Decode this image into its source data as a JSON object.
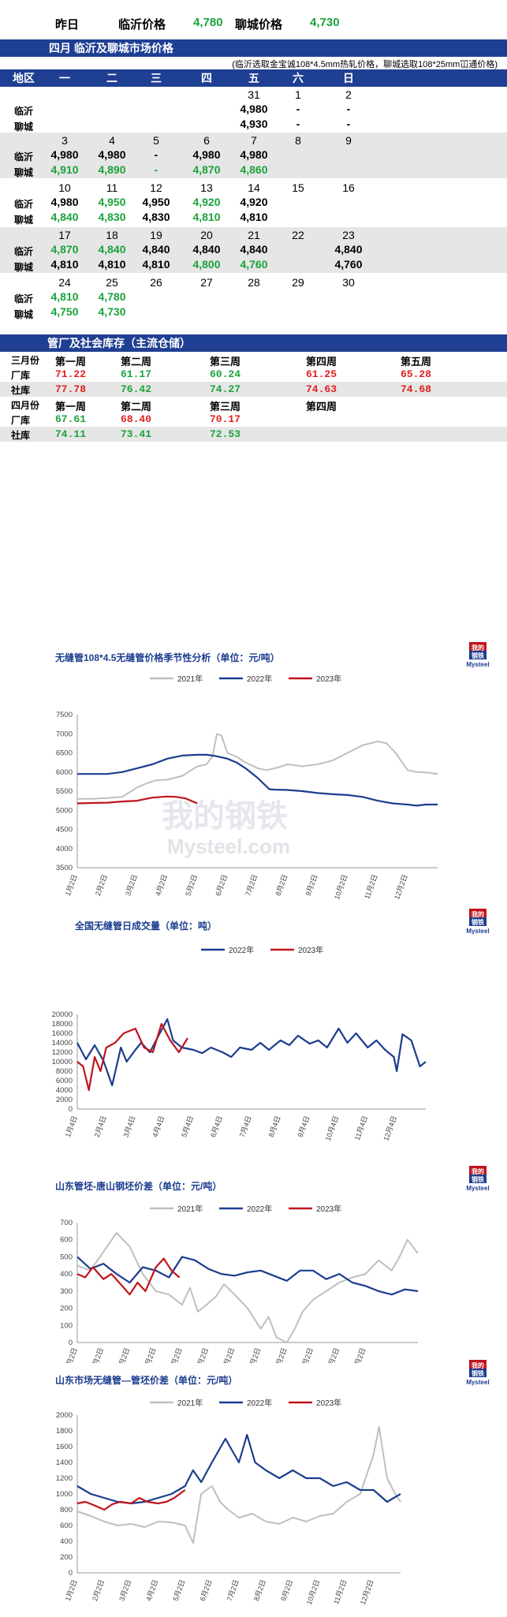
{
  "header": {
    "yesterday_label": "昨日",
    "linyi_label": "临沂价格",
    "linyi_value": "4,780",
    "liaocheng_label": "聊城价格",
    "liaocheng_value": "4,730"
  },
  "calendar": {
    "title": "四月  临沂及聊城市场价格",
    "note": "(临沂选取金宝诚108*4.5mm热轧价格，聊城选取108*25mm冚通价格)",
    "area_label": "地区",
    "weekdays": [
      "一",
      "二",
      "三",
      "四",
      "五",
      "六",
      "日"
    ],
    "row_label_linyi": "临沂",
    "row_label_liaocheng": "聊城",
    "weeks": [
      {
        "dates": [
          "",
          "",
          "",
          "",
          "31",
          "1",
          "2"
        ],
        "linyi": [
          "",
          "",
          "",
          "",
          "4,980",
          "-",
          "-"
        ],
        "liaocheng": [
          "",
          "",
          "",
          "",
          "4,930",
          "-",
          "-"
        ],
        "linyi_color": [
          "",
          "",
          "",
          "",
          "k",
          "k",
          "k"
        ],
        "liaocheng_color": [
          "",
          "",
          "",
          "",
          "k",
          "k",
          "k"
        ]
      },
      {
        "dates": [
          "3",
          "4",
          "5",
          "6",
          "7",
          "8",
          "9"
        ],
        "linyi": [
          "4,980",
          "4,980",
          "-",
          "4,980",
          "4,980",
          "",
          ""
        ],
        "liaocheng": [
          "4,910",
          "4,890",
          "-",
          "4,870",
          "4,860",
          "",
          ""
        ],
        "linyi_color": [
          "k",
          "k",
          "k",
          "k",
          "k",
          "",
          ""
        ],
        "liaocheng_color": [
          "g",
          "g",
          "g",
          "g",
          "g",
          "",
          ""
        ]
      },
      {
        "dates": [
          "10",
          "11",
          "12",
          "13",
          "14",
          "15",
          "16"
        ],
        "linyi": [
          "4,980",
          "4,950",
          "4,950",
          "4,920",
          "4,920",
          "",
          ""
        ],
        "liaocheng": [
          "4,840",
          "4,830",
          "4,830",
          "4,810",
          "4,810",
          "",
          ""
        ],
        "linyi_color": [
          "k",
          "g",
          "k",
          "g",
          "k",
          "",
          ""
        ],
        "liaocheng_color": [
          "g",
          "g",
          "k",
          "g",
          "k",
          "",
          ""
        ]
      },
      {
        "dates": [
          "17",
          "18",
          "19",
          "20",
          "21",
          "22",
          "23"
        ],
        "linyi": [
          "4,870",
          "4,840",
          "4,840",
          "4,840",
          "4,840",
          "",
          "4,840"
        ],
        "liaocheng": [
          "4,810",
          "4,810",
          "4,810",
          "4,800",
          "4,760",
          "",
          "4,760"
        ],
        "linyi_color": [
          "g",
          "g",
          "k",
          "k",
          "k",
          "",
          "k"
        ],
        "liaocheng_color": [
          "k",
          "k",
          "k",
          "g",
          "g",
          "",
          "k"
        ]
      },
      {
        "dates": [
          "24",
          "25",
          "26",
          "27",
          "28",
          "29",
          "30"
        ],
        "linyi": [
          "4,810",
          "4,780",
          "",
          "",
          "",
          "",
          ""
        ],
        "liaocheng": [
          "4,750",
          "4,730",
          "",
          "",
          "",
          "",
          ""
        ],
        "linyi_color": [
          "g",
          "g",
          "",
          "",
          "",
          "",
          ""
        ],
        "liaocheng_color": [
          "g",
          "g",
          "",
          "",
          "",
          "",
          ""
        ]
      }
    ]
  },
  "inventory": {
    "title": "管厂及社会库存（主流仓储）",
    "march_label": "三月份",
    "april_label": "四月份",
    "factory_label": "厂库",
    "social_label": "社库",
    "weeks": [
      "第一周",
      "第二周",
      "第三周",
      "第四周",
      "第五周"
    ],
    "april_weeks": [
      "第一周",
      "第二周",
      "第三周",
      "第四周"
    ],
    "march_factory": [
      "71.22",
      "61.17",
      "60.24",
      "61.25",
      "65.28"
    ],
    "march_factory_color": [
      "r",
      "g",
      "g",
      "r",
      "r"
    ],
    "march_social": [
      "77.78",
      "76.42",
      "74.27",
      "74.63",
      "74.68"
    ],
    "march_social_color": [
      "r",
      "g",
      "g",
      "r",
      "r"
    ],
    "april_factory": [
      "67.61",
      "68.40",
      "70.17"
    ],
    "april_factory_color": [
      "g",
      "r",
      "r"
    ],
    "april_social": [
      "74.11",
      "73.41",
      "72.53"
    ],
    "april_social_color": [
      "g",
      "g",
      "g"
    ]
  },
  "logo": {
    "line1": "我的",
    "line2": "钢铁",
    "brand": "Mysteel"
  },
  "watermark": {
    "cn": "我的钢铁",
    "en": "Mysteel.com"
  },
  "colors": {
    "navy": "#1f3f93",
    "green": "#1aa33a",
    "red": "#e0201f",
    "s2021": "#bfbfbf",
    "s2022": "#1c3d8f",
    "s2023": "#c0141c"
  },
  "chart_data": [
    {
      "type": "line",
      "title": "无缝管108*4.5无缝管价格季节性分析（单位：元/吨）",
      "ylim": [
        3500,
        7500
      ],
      "yticks": [
        3500,
        4000,
        4500,
        5000,
        5500,
        6000,
        6500,
        7000,
        7500
      ],
      "xticks": [
        "1月2日",
        "2月2日",
        "3月2日",
        "4月2日",
        "5月2日",
        "6月2日",
        "7月2日",
        "8月2日",
        "9月2日",
        "10月2日",
        "11月2日",
        "12月2日"
      ],
      "legend": "top",
      "grid": false,
      "series": [
        {
          "name": "2021年",
          "color": "#bfbfbf",
          "x": [
            0,
            0.5,
            1,
            1.5,
            2,
            2.3,
            2.6,
            3,
            3.5,
            4,
            4.3,
            4.5,
            4.65,
            4.8,
            5,
            5.3,
            5.6,
            6,
            6.3,
            6.6,
            7,
            7.5,
            8,
            8.5,
            9,
            9.5,
            10,
            10.3,
            10.6,
            11,
            11.3,
            11.6,
            12
          ],
          "y": [
            5300,
            5300,
            5320,
            5350,
            5600,
            5700,
            5780,
            5800,
            5900,
            6150,
            6200,
            6400,
            7000,
            6950,
            6500,
            6400,
            6250,
            6100,
            6050,
            6100,
            6200,
            6150,
            6200,
            6300,
            6500,
            6700,
            6800,
            6750,
            6500,
            6050,
            6000,
            5990,
            5950
          ]
        },
        {
          "name": "2022年",
          "color": "#1c3d8f",
          "x": [
            0,
            0.5,
            1,
            1.5,
            2,
            2.5,
            3,
            3.5,
            4,
            4.3,
            4.6,
            5,
            5.3,
            5.6,
            6,
            6.2,
            6.4,
            6.6,
            7,
            7.5,
            8,
            8.5,
            9,
            9.5,
            10,
            10.5,
            11,
            11.3,
            11.6,
            12
          ],
          "y": [
            5950,
            5950,
            5950,
            6000,
            6100,
            6200,
            6350,
            6430,
            6450,
            6450,
            6420,
            6350,
            6250,
            6100,
            5850,
            5700,
            5550,
            5540,
            5530,
            5500,
            5450,
            5420,
            5400,
            5350,
            5250,
            5180,
            5150,
            5120,
            5150,
            5150
          ]
        },
        {
          "name": "2023年",
          "color": "#c0141c",
          "x": [
            0,
            0.5,
            1,
            1.5,
            2,
            2.5,
            3,
            3.3,
            3.6,
            4
          ],
          "y": [
            5180,
            5190,
            5200,
            5230,
            5250,
            5330,
            5360,
            5350,
            5310,
            5180
          ]
        }
      ]
    },
    {
      "type": "line",
      "title": "全国无缝管日成交量（单位：吨）",
      "ylim": [
        0,
        20000
      ],
      "yticks": [
        0,
        2000,
        4000,
        6000,
        8000,
        10000,
        12000,
        14000,
        16000,
        18000,
        20000
      ],
      "xticks": [
        "1月4日",
        "2月4日",
        "3月4日",
        "4月4日",
        "5月4日",
        "6月4日",
        "7月4日",
        "8月4日",
        "9月4日",
        "10月4日",
        "11月4日",
        "12月4日"
      ],
      "legend": "top",
      "grid": false,
      "series": [
        {
          "name": "2022年",
          "color": "#1c3d8f",
          "x": [
            0,
            0.3,
            0.6,
            0.9,
            1.2,
            1.5,
            1.7,
            2.0,
            2.2,
            2.5,
            2.8,
            3.1,
            3.3,
            3.6,
            4.0,
            4.3,
            4.6,
            5.0,
            5.3,
            5.6,
            6.0,
            6.3,
            6.6,
            7.0,
            7.3,
            7.6,
            8.0,
            8.3,
            8.6,
            9.0,
            9.3,
            9.6,
            10.0,
            10.3,
            10.6,
            10.9,
            11.0,
            11.2,
            11.5,
            11.8,
            12.0
          ],
          "y": [
            14000,
            10500,
            13500,
            10200,
            5000,
            13000,
            10000,
            12500,
            14000,
            12000,
            15500,
            19000,
            14500,
            13000,
            12500,
            11800,
            13000,
            12000,
            11000,
            13000,
            12500,
            14000,
            12500,
            14500,
            13500,
            15500,
            13800,
            14500,
            13000,
            17000,
            14000,
            16000,
            13000,
            14500,
            12500,
            11000,
            8000,
            15800,
            14500,
            9000,
            10000
          ]
        },
        {
          "name": "2023年",
          "color": "#c0141c",
          "x": [
            0,
            0.2,
            0.4,
            0.6,
            0.8,
            1.0,
            1.3,
            1.6,
            2.0,
            2.3,
            2.6,
            2.9,
            3.2,
            3.5,
            3.8
          ],
          "y": [
            10000,
            9000,
            4000,
            11000,
            8000,
            13000,
            14000,
            16000,
            17000,
            13000,
            12000,
            18000,
            14500,
            12000,
            15000
          ]
        }
      ]
    },
    {
      "type": "line",
      "title": "山东管坯-唐山钢坯价差（单位：元/吨）",
      "ylim": [
        0,
        700
      ],
      "yticks": [
        0,
        100,
        200,
        300,
        400,
        500,
        600,
        700
      ],
      "xticks": [
        "1月2日",
        "2月2日",
        "3月2日",
        "4月2日",
        "5月2日",
        "6月2日",
        "7月2日",
        "8月2日",
        "9月2日",
        "10月2日",
        "11月2日",
        "12月2日"
      ],
      "legend": "top",
      "grid": false,
      "series": [
        {
          "name": "2021年",
          "color": "#bfbfbf",
          "x": [
            0,
            0.5,
            1,
            1.5,
            2,
            2.5,
            3,
            3.5,
            4,
            4.3,
            4.6,
            5,
            5.3,
            5.6,
            6,
            6.5,
            7,
            7.3,
            7.6,
            8,
            8.3,
            8.6,
            9,
            9.5,
            10,
            10.5,
            11,
            11.5,
            12,
            12.3,
            12.6,
            13
          ],
          "y": [
            450,
            420,
            530,
            640,
            560,
            400,
            300,
            280,
            220,
            320,
            180,
            230,
            270,
            340,
            280,
            200,
            80,
            150,
            30,
            0,
            80,
            180,
            250,
            300,
            350,
            380,
            400,
            480,
            420,
            500,
            600,
            520
          ]
        },
        {
          "name": "2022年",
          "color": "#1c3d8f",
          "x": [
            0,
            0.5,
            1,
            1.5,
            2,
            2.5,
            3,
            3.5,
            4,
            4.5,
            5,
            5.5,
            6,
            6.5,
            7,
            7.5,
            8,
            8.5,
            9,
            9.5,
            10,
            10.5,
            11,
            11.5,
            12,
            12.5,
            13
          ],
          "y": [
            500,
            430,
            460,
            400,
            350,
            440,
            420,
            380,
            500,
            480,
            430,
            400,
            390,
            410,
            420,
            390,
            360,
            420,
            420,
            370,
            400,
            350,
            330,
            300,
            280,
            310,
            300
          ]
        },
        {
          "name": "2023年",
          "color": "#c0141c",
          "x": [
            0,
            0.3,
            0.6,
            1.0,
            1.3,
            1.6,
            2.0,
            2.3,
            2.6,
            3.0,
            3.3,
            3.6,
            3.9
          ],
          "y": [
            400,
            380,
            440,
            370,
            400,
            350,
            280,
            350,
            300,
            440,
            490,
            420,
            380
          ]
        }
      ]
    },
    {
      "type": "line",
      "title": "山东市场无缝管—管坯价差（单位：元/吨）",
      "ylim": [
        0,
        2000
      ],
      "yticks": [
        0,
        200,
        400,
        600,
        800,
        1000,
        1200,
        1400,
        1600,
        1800,
        2000
      ],
      "xticks": [
        "1月2日",
        "2月2日",
        "3月2日",
        "4月2日",
        "5月2日",
        "6月2日",
        "7月2日",
        "8月2日",
        "9月2日",
        "10月2日",
        "11月2日",
        "12月2日"
      ],
      "legend": "top",
      "grid": false,
      "series": [
        {
          "name": "2021年",
          "color": "#bfbfbf",
          "x": [
            0,
            0.5,
            1,
            1.5,
            2,
            2.5,
            3,
            3.5,
            4,
            4.3,
            4.6,
            5,
            5.3,
            5.6,
            6,
            6.5,
            7,
            7.5,
            8,
            8.5,
            9,
            9.5,
            10,
            10.5,
            11,
            11.2,
            11.5,
            11.8,
            12
          ],
          "y": [
            780,
            720,
            650,
            600,
            620,
            580,
            650,
            640,
            600,
            380,
            1000,
            1100,
            900,
            800,
            700,
            750,
            650,
            620,
            700,
            650,
            720,
            750,
            900,
            1000,
            1500,
            1850,
            1200,
            1000,
            900
          ]
        },
        {
          "name": "2022年",
          "color": "#1c3d8f",
          "x": [
            0,
            0.5,
            1,
            1.5,
            2,
            2.5,
            3,
            3.5,
            4,
            4.3,
            4.6,
            5,
            5.5,
            6,
            6.3,
            6.6,
            7,
            7.5,
            8,
            8.5,
            9,
            9.5,
            10,
            10.5,
            11,
            11.5,
            12
          ],
          "y": [
            1100,
            1000,
            950,
            900,
            880,
            900,
            950,
            1000,
            1100,
            1300,
            1150,
            1400,
            1700,
            1400,
            1750,
            1400,
            1300,
            1200,
            1300,
            1200,
            1200,
            1100,
            1150,
            1050,
            1050,
            900,
            1000
          ]
        },
        {
          "name": "2023年",
          "color": "#c0141c",
          "x": [
            0,
            0.3,
            0.6,
            1.0,
            1.3,
            1.6,
            2.0,
            2.3,
            2.6,
            3.0,
            3.3,
            3.6,
            4.0
          ],
          "y": [
            880,
            900,
            860,
            800,
            870,
            900,
            880,
            950,
            900,
            880,
            900,
            950,
            1050
          ]
        }
      ]
    }
  ]
}
